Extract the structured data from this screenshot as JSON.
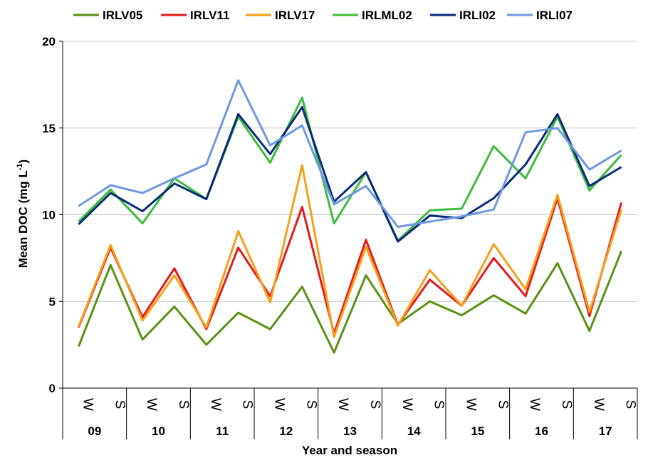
{
  "chart_data": {
    "type": "line",
    "title": "",
    "xlabel": "Year and season",
    "ylabel_main": "Mean DOC (mg L",
    "ylabel_sup": "-1",
    "ylabel_close": ")",
    "ylim": [
      0,
      20
    ],
    "yticks": [
      0,
      5,
      10,
      15,
      20
    ],
    "grid": "horizontal",
    "legend_position": "top",
    "seasons": [
      "W",
      "S",
      "W",
      "S",
      "W",
      "S",
      "W",
      "S",
      "W",
      "S",
      "W",
      "S",
      "W",
      "S",
      "W",
      "S",
      "W",
      "S"
    ],
    "years": [
      "09",
      "10",
      "11",
      "12",
      "13",
      "14",
      "15",
      "16",
      "17"
    ],
    "series": [
      {
        "name": "IRLV05",
        "color": "#5a9214",
        "values": [
          2.4,
          7.1,
          2.8,
          4.7,
          2.5,
          4.35,
          3.4,
          5.85,
          2.05,
          6.5,
          3.7,
          5.0,
          4.2,
          5.35,
          4.3,
          7.2,
          3.3,
          7.9
        ]
      },
      {
        "name": "IRLV11",
        "color": "#e41a1c",
        "values": [
          3.5,
          8.1,
          4.1,
          6.9,
          3.4,
          8.1,
          5.3,
          10.45,
          3.15,
          8.55,
          3.65,
          6.25,
          4.75,
          7.5,
          5.3,
          10.95,
          4.15,
          10.7
        ]
      },
      {
        "name": "IRLV17",
        "color": "#f5a01a",
        "values": [
          3.55,
          8.25,
          3.9,
          6.5,
          3.5,
          9.05,
          4.95,
          12.85,
          2.95,
          8.15,
          3.6,
          6.8,
          4.75,
          8.3,
          5.7,
          11.15,
          4.4,
          10.3
        ]
      },
      {
        "name": "IRLML02",
        "color": "#3cbc3c",
        "values": [
          9.6,
          11.45,
          9.5,
          12.1,
          10.9,
          15.65,
          13.0,
          16.75,
          9.5,
          12.45,
          8.5,
          10.25,
          10.35,
          13.95,
          12.1,
          15.65,
          11.4,
          13.45
        ]
      },
      {
        "name": "IRLI02",
        "color": "#0a2a7a",
        "values": [
          9.45,
          11.25,
          10.2,
          11.8,
          10.9,
          15.8,
          13.5,
          16.2,
          10.75,
          12.45,
          8.45,
          9.95,
          9.8,
          10.95,
          12.9,
          15.8,
          11.65,
          12.75
        ]
      },
      {
        "name": "IRLI07",
        "color": "#6f98e0",
        "values": [
          10.5,
          11.7,
          11.25,
          12.1,
          12.9,
          17.75,
          14.0,
          15.15,
          10.6,
          11.65,
          9.3,
          9.6,
          9.9,
          10.3,
          14.75,
          15.0,
          12.6,
          13.7
        ]
      }
    ]
  }
}
